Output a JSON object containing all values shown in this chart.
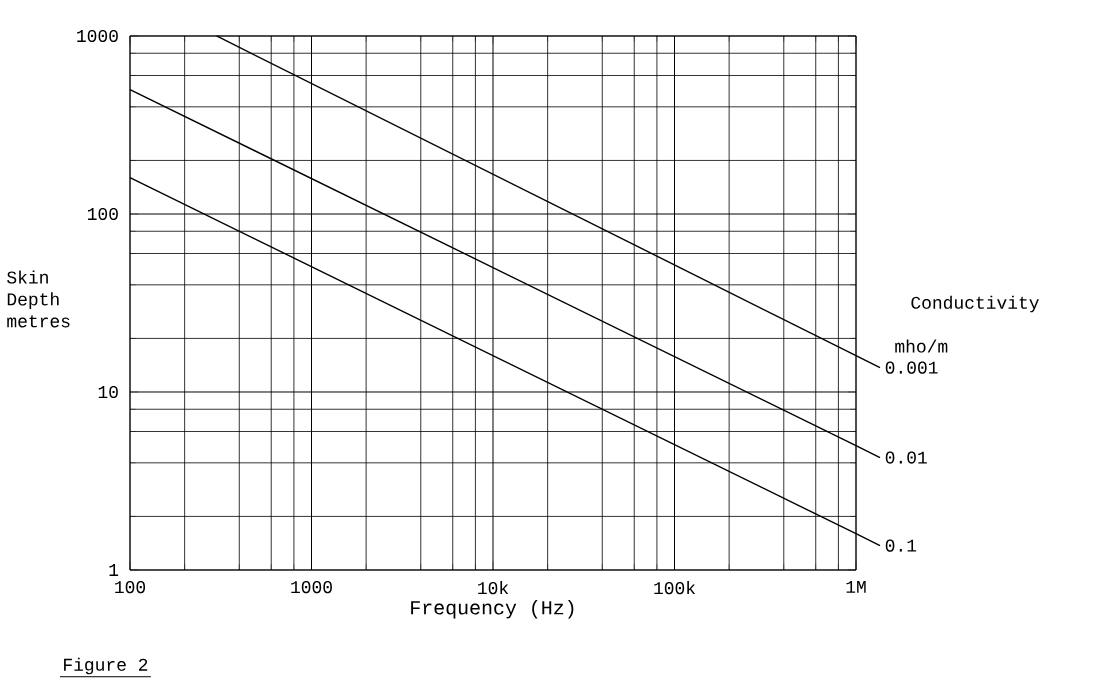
{
  "chart_data": {
    "type": "line",
    "xlabel": "Frequency (Hz)",
    "ylabel": "Skin Depth metres",
    "legend_title": "Conductivity",
    "subtitle": "mho/m",
    "annotations": [
      "Figure 2"
    ],
    "log": "xy",
    "grid": true,
    "legend": "right",
    "marker": "none",
    "line_style": "solid",
    "xlim": [
      100,
      1000000
    ],
    "ylim": [
      1,
      1000
    ],
    "xticks": [
      100,
      1000,
      {
        "value": 10000,
        "label": "10k"
      },
      {
        "value": 100000,
        "label": "100k"
      },
      {
        "value": 1000000,
        "label": "1M"
      }
    ],
    "yticks": [
      1,
      10,
      100,
      1000
    ],
    "series": [
      {
        "name": "0.001",
        "color": "#000000",
        "x": [
          300,
          1000000
        ],
        "values": [
          1000,
          16
        ]
      },
      {
        "name": "0.01",
        "color": "#000000",
        "x": [
          100,
          1000000
        ],
        "values": [
          500,
          5
        ]
      },
      {
        "name": "0.1",
        "color": "#000000",
        "x": [
          100,
          1000000
        ],
        "values": [
          160,
          1.6
        ]
      }
    ]
  }
}
